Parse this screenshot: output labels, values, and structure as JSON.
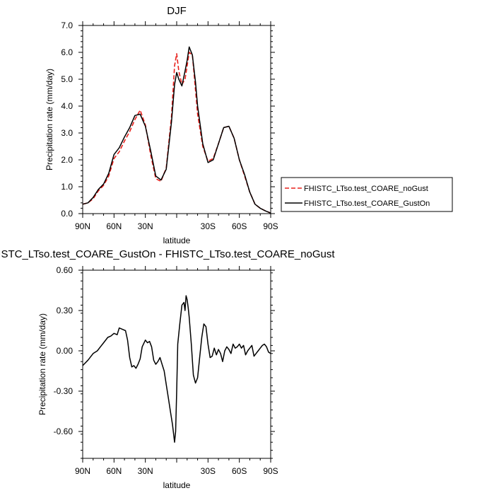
{
  "chart_data": [
    {
      "type": "line",
      "title": "DJF",
      "xlabel": "latitude",
      "ylabel": "Precipitation rate (mm/day)",
      "xlim": [
        90,
        -90
      ],
      "ylim": [
        0,
        7
      ],
      "xticks": [
        90,
        60,
        30,
        0,
        -30,
        -60,
        -90
      ],
      "xtick_labels": [
        "90N",
        "60N",
        "30N",
        "",
        "30S",
        "60S",
        "90S"
      ],
      "yticks": [
        0,
        1,
        2,
        3,
        4,
        5,
        6,
        7
      ],
      "ytick_labels": [
        "0.0",
        "1.0",
        "2.0",
        "3.0",
        "4.0",
        "5.0",
        "6.0",
        "7.0"
      ],
      "legend": "right",
      "series": [
        {
          "name": "FHISTC_LTso.test_COARE_noGust",
          "color": "#e8201c",
          "dash": "dashed",
          "x": [
            90,
            85,
            80,
            75,
            70,
            65,
            60,
            55,
            50,
            45,
            40,
            35,
            30,
            25,
            20,
            15,
            10,
            5,
            2,
            0,
            -2,
            -5,
            -8,
            -10,
            -12,
            -15,
            -18,
            -20,
            -25,
            -30,
            -35,
            -40,
            -45,
            -50,
            -55,
            -60,
            -65,
            -70,
            -75,
            -80,
            -85,
            -90
          ],
          "y": [
            0.35,
            0.4,
            0.55,
            0.85,
            1.05,
            1.4,
            2.05,
            2.3,
            2.7,
            3.05,
            3.5,
            3.85,
            3.3,
            2.2,
            1.3,
            1.2,
            1.7,
            3.6,
            5.5,
            5.95,
            5.3,
            4.8,
            5.0,
            5.5,
            6.0,
            5.9,
            4.6,
            3.7,
            2.5,
            1.95,
            2.05,
            2.6,
            3.2,
            3.25,
            2.8,
            2.0,
            1.4,
            0.8,
            0.35,
            0.2,
            0.1,
            0.02
          ]
        },
        {
          "name": "FHISTC_LTso.test_COARE_GustOn",
          "color": "#000000",
          "dash": "solid",
          "x": [
            90,
            85,
            80,
            75,
            70,
            65,
            60,
            55,
            50,
            45,
            40,
            35,
            30,
            25,
            20,
            15,
            10,
            5,
            2,
            0,
            -2,
            -5,
            -8,
            -10,
            -12,
            -15,
            -18,
            -20,
            -25,
            -30,
            -35,
            -40,
            -45,
            -50,
            -55,
            -60,
            -65,
            -70,
            -75,
            -80,
            -85,
            -90
          ],
          "y": [
            0.35,
            0.4,
            0.6,
            0.9,
            1.1,
            1.5,
            2.2,
            2.45,
            2.85,
            3.2,
            3.65,
            3.7,
            3.25,
            2.35,
            1.4,
            1.25,
            1.65,
            3.4,
            4.8,
            5.25,
            5.0,
            4.75,
            5.3,
            5.7,
            6.2,
            5.9,
            4.9,
            4.0,
            2.6,
            1.9,
            2.0,
            2.6,
            3.2,
            3.25,
            2.8,
            2.0,
            1.45,
            0.8,
            0.35,
            0.2,
            0.1,
            0.02
          ]
        }
      ]
    },
    {
      "type": "line",
      "title": "HISTC_LTso.test_COARE_GustOn - FHISTC_LTso.test_COARE_noGust",
      "xlabel": "latitude",
      "ylabel": "Precipitation rate (mm/day)",
      "xlim": [
        90,
        -90
      ],
      "ylim": [
        -0.8,
        0.6
      ],
      "xticks": [
        90,
        60,
        30,
        0,
        -30,
        -60,
        -90
      ],
      "xtick_labels": [
        "90N",
        "60N",
        "30N",
        "",
        "30S",
        "60S",
        "90S"
      ],
      "yticks": [
        -0.6,
        -0.3,
        0.0,
        0.3,
        0.6
      ],
      "ytick_labels": [
        "-0.60",
        "-0.30",
        "0.00",
        "0.30",
        "0.60"
      ],
      "series": [
        {
          "color": "#000000",
          "dash": "solid",
          "x": [
            90,
            85,
            80,
            76,
            73,
            70,
            66,
            63,
            60,
            57,
            55,
            52,
            49,
            47,
            45,
            43,
            41,
            39,
            37,
            35,
            33,
            30,
            28,
            26,
            24,
            22,
            20,
            18,
            16,
            14,
            12,
            10,
            8,
            6,
            4,
            2,
            1,
            0,
            -1,
            -3,
            -5,
            -7,
            -8,
            -9,
            -10,
            -11,
            -12,
            -14,
            -16,
            -18,
            -20,
            -22,
            -24,
            -26,
            -28,
            -30,
            -32,
            -34,
            -36,
            -38,
            -40,
            -42,
            -44,
            -46,
            -48,
            -50,
            -52,
            -54,
            -56,
            -58,
            -60,
            -62,
            -64,
            -66,
            -68,
            -70,
            -72,
            -74,
            -76,
            -78,
            -80,
            -82,
            -84,
            -86,
            -88,
            -90
          ],
          "y": [
            -0.11,
            -0.07,
            -0.02,
            0.0,
            0.03,
            0.06,
            0.1,
            0.11,
            0.13,
            0.12,
            0.17,
            0.16,
            0.15,
            0.08,
            -0.05,
            -0.12,
            -0.11,
            -0.13,
            -0.1,
            -0.06,
            0.03,
            0.08,
            0.06,
            0.07,
            0.03,
            -0.07,
            -0.1,
            -0.08,
            -0.05,
            -0.1,
            -0.15,
            -0.25,
            -0.35,
            -0.45,
            -0.55,
            -0.68,
            -0.6,
            -0.3,
            0.05,
            0.2,
            0.34,
            0.36,
            0.3,
            0.41,
            0.38,
            0.32,
            0.25,
            0.05,
            -0.18,
            -0.24,
            -0.2,
            -0.05,
            0.1,
            0.2,
            0.18,
            0.05,
            -0.05,
            -0.04,
            0.02,
            -0.03,
            0.01,
            -0.02,
            -0.08,
            0.0,
            0.03,
            0.01,
            -0.02,
            0.05,
            0.02,
            0.03,
            0.05,
            0.02,
            0.04,
            -0.03,
            0.0,
            0.02,
            0.04,
            -0.04,
            -0.02,
            0.0,
            0.02,
            0.04,
            0.05,
            0.03,
            -0.01,
            -0.02
          ]
        }
      ]
    }
  ]
}
